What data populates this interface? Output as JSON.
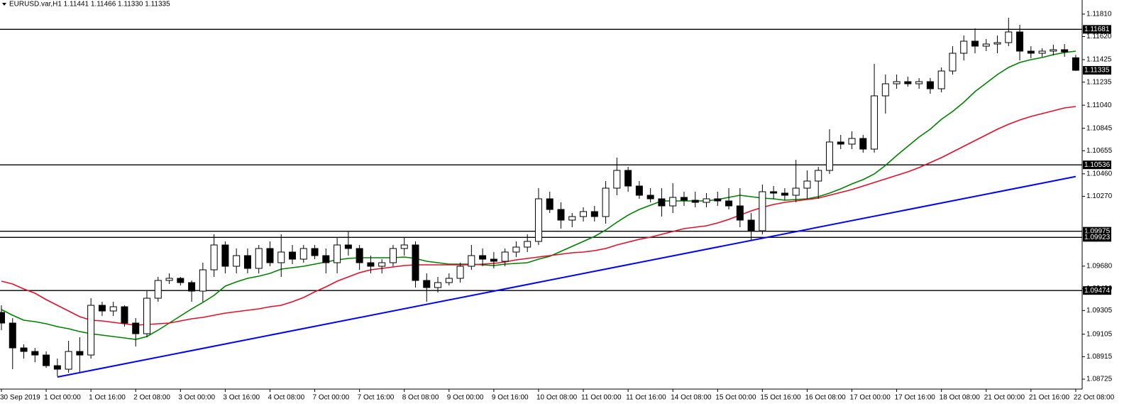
{
  "chart_data": {
    "type": "candlestick",
    "title": "EURUSD.var,H1  1.11441 1.11466 1.11330 1.11335",
    "categories": [
      "30 Sep 2019",
      null,
      null,
      null,
      "1 Oct 00:00",
      null,
      null,
      null,
      "1 Oct 16:00",
      null,
      null,
      null,
      "2 Oct 08:00",
      null,
      null,
      null,
      "3 Oct 00:00",
      null,
      null,
      null,
      "3 Oct 16:00",
      null,
      null,
      null,
      "4 Oct 08:00",
      null,
      null,
      null,
      "7 Oct 00:00",
      null,
      null,
      null,
      "7 Oct 16:00",
      null,
      null,
      null,
      "8 Oct 08:00",
      null,
      null,
      null,
      "9 Oct 00:00",
      null,
      null,
      null,
      "9 Oct 16:00",
      null,
      null,
      null,
      "10 Oct 08:00",
      null,
      null,
      null,
      "11 Oct 00:00",
      null,
      null,
      null,
      "11 Oct 16:00",
      null,
      null,
      null,
      "14 Oct 08:00",
      null,
      null,
      null,
      "15 Oct 00:00",
      null,
      null,
      null,
      "15 Oct 16:00",
      null,
      null,
      null,
      "16 Oct 08:00",
      null,
      null,
      null,
      "17 Oct 00:00",
      null,
      null,
      null,
      "17 Oct 16:00",
      null,
      null,
      null,
      "18 Oct 08:00",
      null,
      null,
      null,
      "21 Oct 00:00",
      null,
      null,
      null,
      "21 Oct 16:00",
      null,
      null,
      null,
      "22 Oct 08:00"
    ],
    "open": [
      1.09289,
      1.09199,
      1.08989,
      1.08959,
      1.08929,
      1.08839,
      1.08809,
      1.08959,
      1.08929,
      1.09349,
      1.09301,
      1.09337,
      1.09199,
      1.09109,
      1.09409,
      1.09559,
      1.09577,
      1.09541,
      1.09469,
      1.09649,
      1.09859,
      1.09679,
      1.09769,
      1.09661,
      1.09829,
      1.09709,
      1.09799,
      1.09739,
      1.09829,
      1.09769,
      1.09709,
      1.09859,
      1.09829,
      1.09709,
      1.09679,
      1.09709,
      1.09829,
      1.09859,
      1.09559,
      1.09499,
      1.09541,
      1.09577,
      1.09679,
      1.09769,
      1.09739,
      1.09721,
      1.09799,
      1.09841,
      1.09889,
      1.10249,
      1.10159,
      1.10069,
      1.10099,
      1.10141,
      1.10099,
      1.10339,
      1.10489,
      1.10357,
      1.10279,
      1.10249,
      1.10189,
      1.10261,
      1.10237,
      1.10219,
      1.10249,
      1.10231,
      1.10189,
      1.10069,
      1.09979,
      1.10309,
      1.10297,
      1.10279,
      1.10339,
      1.10399,
      1.10489,
      1.10729,
      1.10711,
      1.10759,
      1.10669,
      1.11119,
      1.11221,
      1.11239,
      1.11221,
      1.11239,
      1.11179,
      1.11329,
      1.11479,
      1.11581,
      1.11539,
      1.11557,
      1.11569,
      1.11659,
      1.11497,
      1.11479,
      1.11497,
      1.11509,
      1.11441
    ],
    "high": [
      1.09349,
      1.09241,
      1.09019,
      1.08989,
      1.08959,
      1.08899,
      1.09049,
      1.09079,
      1.09409,
      1.09379,
      1.09379,
      1.09349,
      1.09241,
      1.09469,
      1.09589,
      1.09619,
      1.09589,
      1.09559,
      1.09709,
      1.09949,
      1.09889,
      1.09829,
      1.09829,
      1.09859,
      1.09889,
      1.09949,
      1.09859,
      1.09859,
      1.09859,
      1.09829,
      1.09919,
      1.09979,
      1.09859,
      1.09769,
      1.09739,
      1.09859,
      1.09919,
      1.09889,
      1.09619,
      1.09589,
      1.09619,
      1.09709,
      1.09859,
      1.09829,
      1.09799,
      1.09829,
      1.09889,
      1.09949,
      1.10339,
      1.10309,
      1.10219,
      1.10129,
      1.10177,
      1.10189,
      1.10399,
      1.10597,
      1.10519,
      1.10399,
      1.10339,
      1.10339,
      1.10381,
      1.10309,
      1.10309,
      1.10297,
      1.10309,
      1.10339,
      1.10339,
      1.10129,
      1.10369,
      1.10357,
      1.10339,
      1.10579,
      1.10489,
      1.10519,
      1.10837,
      1.10789,
      1.10819,
      1.10789,
      1.11389,
      1.11299,
      1.11299,
      1.11281,
      1.11269,
      1.11269,
      1.11359,
      1.11539,
      1.11629,
      1.11689,
      1.11599,
      1.11629,
      1.11779,
      1.11719,
      1.11539,
      1.11521,
      1.11551,
      1.11557,
      1.11466
    ],
    "low": [
      1.09139,
      1.08809,
      1.08899,
      1.08869,
      1.08821,
      1.08749,
      1.08779,
      1.08779,
      1.08899,
      1.09259,
      1.09259,
      1.09169,
      1.09001,
      1.09079,
      1.09379,
      1.09529,
      1.09517,
      1.09379,
      1.09379,
      1.09589,
      1.09619,
      1.09619,
      1.09619,
      1.09619,
      1.09679,
      1.09589,
      1.09697,
      1.09709,
      1.09739,
      1.09619,
      1.09619,
      1.09769,
      1.09649,
      1.09619,
      1.09619,
      1.09679,
      1.09769,
      1.09499,
      1.09379,
      1.09457,
      1.09517,
      1.09541,
      1.09649,
      1.09679,
      1.09661,
      1.09679,
      1.09757,
      1.09799,
      1.09859,
      1.10129,
      1.09997,
      1.10009,
      1.10057,
      1.10057,
      1.10039,
      1.10279,
      1.10309,
      1.10249,
      1.10219,
      1.10099,
      1.10129,
      1.10189,
      1.10177,
      1.10177,
      1.10189,
      1.10159,
      1.10009,
      1.09901,
      1.09949,
      1.10249,
      1.10237,
      1.10219,
      1.10249,
      1.10249,
      1.10459,
      1.10669,
      1.10669,
      1.10639,
      1.10639,
      1.10969,
      1.11179,
      1.11197,
      1.11179,
      1.11137,
      1.11149,
      1.11299,
      1.11419,
      1.11479,
      1.11497,
      1.11479,
      1.11539,
      1.11419,
      1.11437,
      1.11449,
      1.11461,
      1.11449,
      1.1133
    ],
    "close": [
      1.09199,
      1.08989,
      1.08959,
      1.08929,
      1.08839,
      1.08809,
      1.08959,
      1.08929,
      1.09349,
      1.09301,
      1.09337,
      1.09199,
      1.09109,
      1.09409,
      1.09559,
      1.09577,
      1.09541,
      1.09469,
      1.09649,
      1.09859,
      1.09679,
      1.09769,
      1.09661,
      1.09829,
      1.09709,
      1.09799,
      1.09739,
      1.09829,
      1.09769,
      1.09709,
      1.09859,
      1.09829,
      1.09709,
      1.09679,
      1.09709,
      1.09829,
      1.09859,
      1.09559,
      1.09499,
      1.09541,
      1.09577,
      1.09679,
      1.09769,
      1.09739,
      1.09721,
      1.09799,
      1.09841,
      1.09889,
      1.10249,
      1.10159,
      1.10069,
      1.10099,
      1.10141,
      1.10099,
      1.10339,
      1.10489,
      1.10357,
      1.10279,
      1.10249,
      1.10189,
      1.10261,
      1.10237,
      1.10219,
      1.10249,
      1.10231,
      1.10189,
      1.10069,
      1.09979,
      1.10309,
      1.10297,
      1.10279,
      1.10339,
      1.10399,
      1.10489,
      1.10729,
      1.10711,
      1.10759,
      1.10669,
      1.11119,
      1.11221,
      1.11239,
      1.11221,
      1.11239,
      1.11179,
      1.11329,
      1.11479,
      1.11581,
      1.11539,
      1.11557,
      1.11569,
      1.11659,
      1.11497,
      1.11479,
      1.11497,
      1.11509,
      1.11491,
      1.11335
    ],
    "candle_color": "#000000",
    "bull_fill": "#ffffff",
    "series": [
      {
        "color": "#008000",
        "values": [
          1.09313,
          1.09265,
          1.09223,
          1.09211,
          1.09193,
          1.09169,
          1.09151,
          1.09127,
          1.09109,
          1.09097,
          1.09085,
          1.09073,
          1.09061,
          1.09085,
          1.09139,
          1.09199,
          1.09259,
          1.09319,
          1.09373,
          1.09433,
          1.09511,
          1.09547,
          1.09577,
          1.09595,
          1.09619,
          1.09655,
          1.09667,
          1.09679,
          1.09697,
          1.09715,
          1.09733,
          1.09745,
          1.09751,
          1.09751,
          1.09751,
          1.09751,
          1.09757,
          1.09745,
          1.09721,
          1.09709,
          1.09697,
          1.09697,
          1.09697,
          1.09691,
          1.09685,
          1.09697,
          1.09703,
          1.09709,
          1.09739,
          1.09763,
          1.09805,
          1.09847,
          1.09889,
          1.09931,
          1.09985,
          1.10051,
          1.10111,
          1.10159,
          1.10195,
          1.10231,
          1.10231,
          1.10231,
          1.10231,
          1.10231,
          1.10243,
          1.10261,
          1.10279,
          1.10267,
          1.10255,
          1.10249,
          1.10237,
          1.10243,
          1.10249,
          1.10267,
          1.10297,
          1.10333,
          1.10375,
          1.10411,
          1.10459,
          1.10531,
          1.10615,
          1.10693,
          1.10771,
          1.10837,
          1.10921,
          1.10987,
          1.11065,
          1.11155,
          1.11227,
          1.11299,
          1.11359,
          1.11401,
          1.11425,
          1.11443,
          1.11467,
          1.11485,
          1.11497
        ]
      },
      {
        "color": "#e0102a",
        "values": [
          1.09553,
          1.09529,
          1.09487,
          1.09451,
          1.09397,
          1.09349,
          1.09301,
          1.09253,
          1.09223,
          1.09217,
          1.09205,
          1.09193,
          1.09181,
          1.09187,
          1.09193,
          1.09199,
          1.09217,
          1.09235,
          1.09247,
          1.09265,
          1.09283,
          1.09295,
          1.09307,
          1.09319,
          1.09337,
          1.09349,
          1.09379,
          1.09415,
          1.09463,
          1.09505,
          1.09553,
          1.09589,
          1.09625,
          1.09649,
          1.09661,
          1.09673,
          1.09685,
          1.09691,
          1.09691,
          1.09691,
          1.09691,
          1.09691,
          1.09691,
          1.09697,
          1.09703,
          1.09715,
          1.09733,
          1.09745,
          1.09757,
          1.09769,
          1.09781,
          1.09793,
          1.09799,
          1.09811,
          1.09829,
          1.09859,
          1.09883,
          1.09907,
          1.09925,
          1.09949,
          1.09973,
          1.09997,
          1.10009,
          1.10021,
          1.10045,
          1.10075,
          1.10111,
          1.10147,
          1.10177,
          1.10201,
          1.10219,
          1.10231,
          1.10243,
          1.10255,
          1.10279,
          1.10303,
          1.10327,
          1.10357,
          1.10387,
          1.10417,
          1.10447,
          1.10477,
          1.10513,
          1.10555,
          1.10597,
          1.10645,
          1.10693,
          1.10741,
          1.10789,
          1.10837,
          1.10879,
          1.10915,
          1.10945,
          1.10969,
          1.10993,
          1.11017,
          1.11029
        ]
      }
    ],
    "trendline": {
      "color": "#0000ff",
      "x": [
        5,
        96
      ],
      "y": [
        1.08743,
        1.10437
      ]
    },
    "levels": [
      1.11681,
      1.10536,
      1.09975,
      1.09923,
      1.09474
    ],
    "ylim": [
      1.08641,
      1.11929
    ],
    "yticks": [
      {
        "value": 1.1181,
        "label": "1.11810"
      },
      {
        "value": 1.1162,
        "label": "1.11620"
      },
      1.11425,
      1.11235,
      {
        "value": 1.1104,
        "label": "1.11040"
      },
      1.10845,
      1.10655,
      {
        "value": 1.1046,
        "label": "1.10460"
      },
      {
        "value": 1.1027,
        "label": "1.10270"
      },
      {
        "value": 1.0968,
        "label": "1.09680"
      },
      {
        "value": 1.0949,
        "label": "1.09490"
      },
      1.09305,
      1.09105,
      1.08915,
      1.08725
    ],
    "grid": false
  }
}
